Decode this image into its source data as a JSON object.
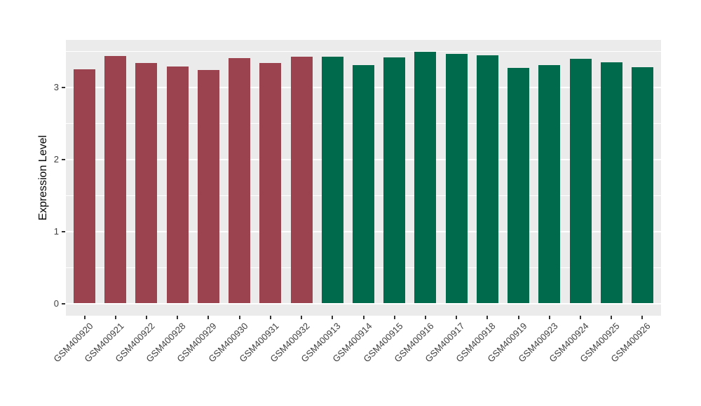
{
  "chart_data": {
    "type": "bar",
    "title": "",
    "xlabel": "",
    "ylabel": "Expression Level",
    "categories": [
      "GSM400920",
      "GSM400921",
      "GSM400922",
      "GSM400928",
      "GSM400929",
      "GSM400930",
      "GSM400931",
      "GSM400932",
      "GSM400913",
      "GSM400914",
      "GSM400915",
      "GSM400916",
      "GSM400917",
      "GSM400918",
      "GSM400919",
      "GSM400923",
      "GSM400924",
      "GSM400925",
      "GSM400926"
    ],
    "values": [
      3.25,
      3.44,
      3.34,
      3.29,
      3.24,
      3.41,
      3.34,
      3.43,
      3.43,
      3.31,
      3.42,
      3.5,
      3.47,
      3.45,
      3.27,
      3.31,
      3.4,
      3.35,
      3.28
    ],
    "colors": [
      "#9B4450",
      "#9B4450",
      "#9B4450",
      "#9B4450",
      "#9B4450",
      "#9B4450",
      "#9B4450",
      "#9B4450",
      "#006A4C",
      "#006A4C",
      "#006A4C",
      "#006A4C",
      "#006A4C",
      "#006A4C",
      "#006A4C",
      "#006A4C",
      "#006A4C",
      "#006A4C",
      "#006A4C"
    ],
    "groups": [
      {
        "name": "left-group",
        "color": "#9B4450",
        "count": 8
      },
      {
        "name": "right-group",
        "color": "#006A4C",
        "count": 11
      }
    ],
    "yticks": [
      0,
      1,
      2,
      3
    ],
    "ylim": [
      -0.17,
      3.66
    ],
    "grid": "major-and-minor",
    "legend_position": "none",
    "x_tick_label_rotation_deg": 45,
    "panel_background": "#EBEBEB",
    "grid_color": "#FFFFFF",
    "axis_text_color": "#404040",
    "axis_title_color": "#000000"
  }
}
